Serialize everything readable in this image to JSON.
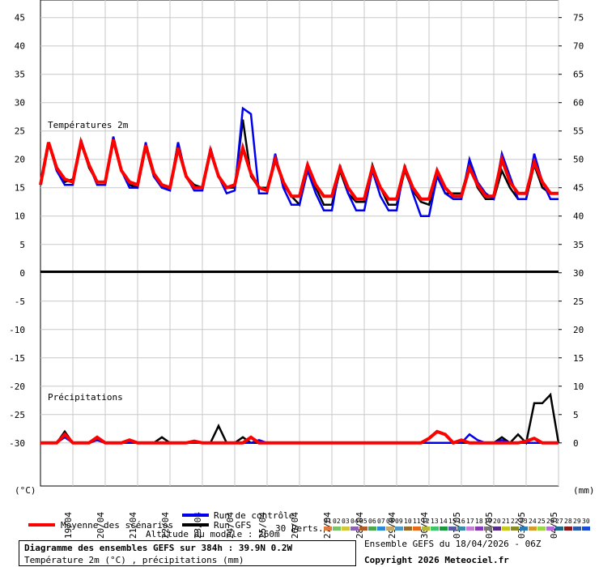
{
  "chart_data": {
    "type": "line",
    "title": "Diagramme des ensembles GEFS sur 384h : 39.9N 0.2W",
    "subtitle": "Température 2m (°C) , précipitations (mm)",
    "run_info": "Ensemble GEFS du 18/04/2026 - 06Z",
    "copyright": "Copyright 2026 Meteociel.fr",
    "altitude": "Altitude du modele : 260m",
    "temp_panel_label": "Températures 2m",
    "precip_panel_label": "Précipitations",
    "y_unit": "(°C)",
    "y2_unit": "(mm)",
    "ylim": [
      -37.6,
      48.1
    ],
    "yticks": [
      45,
      40,
      35,
      30,
      25,
      20,
      15,
      10,
      5,
      0,
      -5,
      -10,
      -15,
      -20,
      -25,
      -30
    ],
    "y2lim": [
      -7.6,
      78.1
    ],
    "y2ticks": [
      75,
      70,
      65,
      60,
      55,
      50,
      45,
      40,
      35,
      30,
      25,
      20,
      15,
      10,
      5,
      0
    ],
    "grid": true,
    "x_labels": [
      "19/04",
      "20/04",
      "21/04",
      "22/04",
      "23/04",
      "24/04",
      "25/04",
      "26/04",
      "27/04",
      "28/04",
      "29/04",
      "30/04",
      "01/05",
      "02/05",
      "03/05",
      "04/05"
    ],
    "series": [
      {
        "name": "Moyenne des scénarios",
        "color": "#ff0000",
        "values": [
          15.5,
          23,
          18.5,
          16.5,
          16,
          23,
          19,
          16,
          16,
          23.5,
          18,
          16,
          15.5,
          22.5,
          17.5,
          15.5,
          15,
          22,
          17,
          15,
          15,
          21.5,
          17,
          15,
          15.5,
          22,
          17.5,
          15,
          14.5,
          20,
          16,
          13.5,
          13.5,
          19,
          15.5,
          13.5,
          13.5,
          18.5,
          15,
          13,
          13,
          18.5,
          15,
          13,
          13,
          18.5,
          15,
          13,
          13,
          18,
          15,
          13.5,
          13.5,
          18.5,
          15.5,
          13.5,
          13.5,
          20,
          16,
          14,
          14,
          19.5,
          16,
          14,
          14
        ],
        "precip_values": [
          0,
          0,
          0,
          1.5,
          0,
          0,
          0,
          1,
          0,
          0,
          0,
          0.5,
          0,
          0,
          0,
          0,
          0,
          0,
          0,
          0.3,
          0,
          0,
          0,
          0,
          0,
          0,
          1,
          0,
          0,
          0,
          0,
          0,
          0,
          0,
          0,
          0,
          0,
          0,
          0,
          0,
          0,
          0,
          0,
          0,
          0,
          0,
          0,
          0,
          0.8,
          2,
          1.5,
          0,
          0.5,
          0,
          0,
          0,
          0,
          0,
          0,
          0,
          0.3,
          0.8,
          0,
          0,
          0
        ]
      },
      {
        "name": "Run de contrôle",
        "color": "#0000ee",
        "values": [
          15.5,
          23,
          18,
          15.5,
          15.5,
          23.5,
          19,
          15.5,
          15.5,
          24,
          18,
          15,
          15,
          23,
          17,
          15,
          14.5,
          23,
          17,
          14.5,
          14.5,
          22,
          17,
          14,
          14.5,
          29,
          28,
          14,
          14,
          21,
          15,
          12,
          12,
          18,
          14,
          11,
          11,
          19,
          14,
          11,
          11,
          18,
          13.5,
          11,
          11,
          19,
          14,
          10,
          10,
          17,
          14,
          13,
          13,
          20,
          16,
          14,
          13,
          21,
          17,
          13,
          13,
          21,
          16,
          13,
          13
        ],
        "precip_values": [
          0,
          0,
          0,
          1,
          0,
          0,
          0,
          0.5,
          0,
          0,
          0,
          0,
          0,
          0,
          0,
          0,
          0,
          0,
          0,
          0,
          0,
          0,
          0,
          0,
          0,
          0,
          0,
          0.5,
          0,
          0,
          0,
          0,
          0,
          0,
          0,
          0,
          0,
          0,
          0,
          0,
          0,
          0,
          0,
          0,
          0,
          0,
          0,
          0,
          0,
          0,
          0,
          0,
          0,
          1.5,
          0.5,
          0,
          0,
          0.5,
          0,
          0,
          0,
          0,
          0,
          0,
          0
        ]
      },
      {
        "name": "Run GFS",
        "color": "#000000",
        "values": [
          15.5,
          23,
          18,
          16,
          16.5,
          23,
          18.5,
          16,
          16,
          24,
          18,
          15.5,
          15,
          22,
          17,
          15,
          15,
          23,
          17,
          15.5,
          15,
          22,
          17,
          15,
          15,
          27,
          17,
          15,
          15,
          20,
          15.5,
          13.5,
          12,
          19,
          15,
          12,
          12,
          18,
          14,
          12.5,
          12.5,
          19,
          15,
          12,
          12,
          18,
          14.5,
          12.5,
          12,
          17,
          14,
          14,
          14,
          19,
          15,
          13,
          13,
          18,
          15,
          13,
          13,
          19,
          15,
          14,
          14
        ],
        "precip_values": [
          0,
          0,
          0,
          2,
          0,
          0,
          0,
          0.5,
          0,
          0,
          0,
          0,
          0,
          0,
          0,
          1,
          0,
          0,
          0,
          0,
          0,
          0,
          3,
          0,
          0,
          1,
          0,
          0,
          0,
          0,
          0,
          0,
          0,
          0,
          0,
          0,
          0,
          0,
          0,
          0,
          0,
          0,
          0,
          0,
          0,
          0,
          0,
          0,
          0,
          0,
          0,
          0,
          0,
          0,
          0,
          0,
          0,
          1,
          0,
          1.5,
          0,
          7,
          7,
          8.5,
          0
        ]
      }
    ],
    "perturbations": {
      "label": "30 Perts.",
      "names": [
        "01",
        "02",
        "03",
        "04",
        "05",
        "06",
        "07",
        "08",
        "09",
        "10",
        "11",
        "12",
        "13",
        "14",
        "15",
        "16",
        "17",
        "18",
        "19",
        "20",
        "21",
        "22",
        "23",
        "24",
        "25",
        "26",
        "27",
        "28",
        "29",
        "30"
      ],
      "colors": [
        "#e07b39",
        "#7ac36a",
        "#d4c83a",
        "#8a63b8",
        "#b05a28",
        "#4aa84a",
        "#2a8ad8",
        "#c8a868",
        "#4a98c8",
        "#9a6a2a",
        "#e86a1a",
        "#b8b838",
        "#3ac86a",
        "#1a9a3a",
        "#5a5aa8",
        "#3a8aa8",
        "#c87ad8",
        "#8a38b8",
        "#787878",
        "#5a2a8a",
        "#c8c818",
        "#8a8a28",
        "#2a7ab8",
        "#d89a2a",
        "#9ad84a",
        "#b86ad8",
        "#186a8a",
        "#8a1818",
        "#2a5aa8",
        "#1a4ad8"
      ]
    }
  }
}
